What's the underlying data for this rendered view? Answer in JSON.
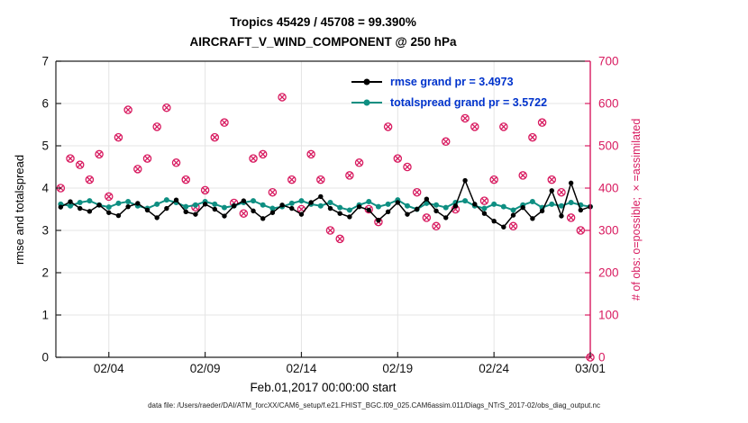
{
  "title": {
    "line1": "Tropics 45429 / 45708 = 99.390%",
    "line2": "AIRCRAFT_V_WIND_COMPONENT @ 250 hPa"
  },
  "legend": {
    "rmse": "rmse grand pr = 3.4973",
    "spread": "totalspread grand pr = 3.5722"
  },
  "axes": {
    "left_label": "rmse and totalspread",
    "right_label": "# of obs: o=possible; ×=assimilated",
    "x_label": "Feb.01,2017 00:00:00 start"
  },
  "footer": "data file: /Users/raeder/DAI/ATM_forcXX/CAM6_setup/f.e21.FHIST_BGC.f09_025.CAM6assim.011/Diags_NTrS_2017-02/obs_diag_output.nc",
  "colors": {
    "obs": "#D81B60",
    "rmse": "#000000",
    "spread": "#0E8F82",
    "legend_text": "#0033CC",
    "spine": "#222222",
    "grid": "#E4E4E4",
    "tick_text": "#111111"
  },
  "chart_data": {
    "type": "line",
    "title": "Tropics 45429 / 45708 = 99.390% — AIRCRAFT_V_WIND_COMPONENT @ 250 hPa",
    "xlabel": "Feb.01,2017 00:00:00 start",
    "ylabel_left": "rmse and totalspread",
    "ylabel_right": "# of obs: o=possible; ×=assimilated",
    "grid": true,
    "legend_position": "top-center",
    "x_axis": {
      "min": 1.25,
      "max": 29,
      "ticks": [
        {
          "day": 4,
          "label": "02/04"
        },
        {
          "day": 9,
          "label": "02/09"
        },
        {
          "day": 14,
          "label": "02/14"
        },
        {
          "day": 19,
          "label": "02/19"
        },
        {
          "day": 24,
          "label": "02/24"
        },
        {
          "day": 29,
          "label": "03/01"
        }
      ]
    },
    "left_axis": {
      "min": 0,
      "max": 7,
      "ticks": [
        0,
        1,
        2,
        3,
        4,
        5,
        6,
        7
      ]
    },
    "right_axis": {
      "min": 0,
      "max": 700,
      "ticks": [
        0,
        100,
        200,
        300,
        400,
        500,
        600,
        700
      ]
    },
    "x_days": [
      1.5,
      2,
      2.5,
      3,
      3.5,
      4,
      4.5,
      5,
      5.5,
      6,
      6.5,
      7,
      7.5,
      8,
      8.5,
      9,
      9.5,
      10,
      10.5,
      11,
      11.5,
      12,
      12.5,
      13,
      13.5,
      14,
      14.5,
      15,
      15.5,
      16,
      16.5,
      17,
      17.5,
      18,
      18.5,
      19,
      19.5,
      20,
      20.5,
      21,
      21.5,
      22,
      22.5,
      23,
      23.5,
      24,
      24.5,
      25,
      25.5,
      26,
      26.5,
      27,
      27.5,
      28,
      28.5,
      29
    ],
    "series": [
      {
        "name": "rmse",
        "axis": "left",
        "marker": "filled-circle",
        "values": [
          3.55,
          3.68,
          3.52,
          3.45,
          3.6,
          3.42,
          3.35,
          3.56,
          3.64,
          3.48,
          3.3,
          3.52,
          3.72,
          3.44,
          3.38,
          3.62,
          3.5,
          3.34,
          3.58,
          3.7,
          3.46,
          3.28,
          3.42,
          3.6,
          3.52,
          3.38,
          3.66,
          3.8,
          3.52,
          3.4,
          3.32,
          3.56,
          3.48,
          3.24,
          3.44,
          3.66,
          3.38,
          3.5,
          3.74,
          3.46,
          3.3,
          3.58,
          4.18,
          3.62,
          3.4,
          3.22,
          3.08,
          3.36,
          3.54,
          3.28,
          3.46,
          3.94,
          3.34,
          4.12,
          3.48,
          3.56
        ]
      },
      {
        "name": "totalspread",
        "axis": "left",
        "marker": "filled-circle",
        "values": [
          3.62,
          3.58,
          3.66,
          3.7,
          3.6,
          3.55,
          3.64,
          3.68,
          3.58,
          3.52,
          3.62,
          3.72,
          3.66,
          3.56,
          3.6,
          3.68,
          3.62,
          3.54,
          3.58,
          3.66,
          3.7,
          3.6,
          3.52,
          3.56,
          3.64,
          3.7,
          3.62,
          3.58,
          3.66,
          3.54,
          3.48,
          3.6,
          3.68,
          3.56,
          3.62,
          3.72,
          3.58,
          3.5,
          3.64,
          3.6,
          3.54,
          3.66,
          3.7,
          3.58,
          3.52,
          3.62,
          3.56,
          3.48,
          3.6,
          3.68,
          3.54,
          3.62,
          3.58,
          3.66,
          3.6,
          3.56
        ]
      },
      {
        "name": "possible_obs",
        "axis": "right",
        "marker": "open-circle",
        "values": [
          400,
          470,
          455,
          420,
          480,
          380,
          520,
          585,
          445,
          470,
          545,
          590,
          460,
          420,
          355,
          395,
          520,
          555,
          365,
          340,
          470,
          480,
          390,
          615,
          420,
          350,
          480,
          420,
          300,
          280,
          430,
          460,
          350,
          320,
          545,
          470,
          450,
          390,
          330,
          310,
          510,
          350,
          565,
          545,
          370,
          420,
          545,
          310,
          430,
          520,
          555,
          420,
          390,
          330,
          300,
          0
        ]
      },
      {
        "name": "assimilated_obs",
        "axis": "right",
        "marker": "cross",
        "values": [
          400,
          470,
          455,
          420,
          480,
          380,
          520,
          585,
          445,
          470,
          545,
          590,
          460,
          420,
          355,
          395,
          520,
          555,
          365,
          340,
          470,
          480,
          390,
          615,
          420,
          350,
          480,
          420,
          300,
          280,
          430,
          460,
          350,
          320,
          545,
          470,
          450,
          390,
          330,
          310,
          510,
          350,
          565,
          545,
          370,
          420,
          545,
          310,
          430,
          520,
          555,
          420,
          390,
          330,
          300,
          0
        ]
      }
    ]
  }
}
